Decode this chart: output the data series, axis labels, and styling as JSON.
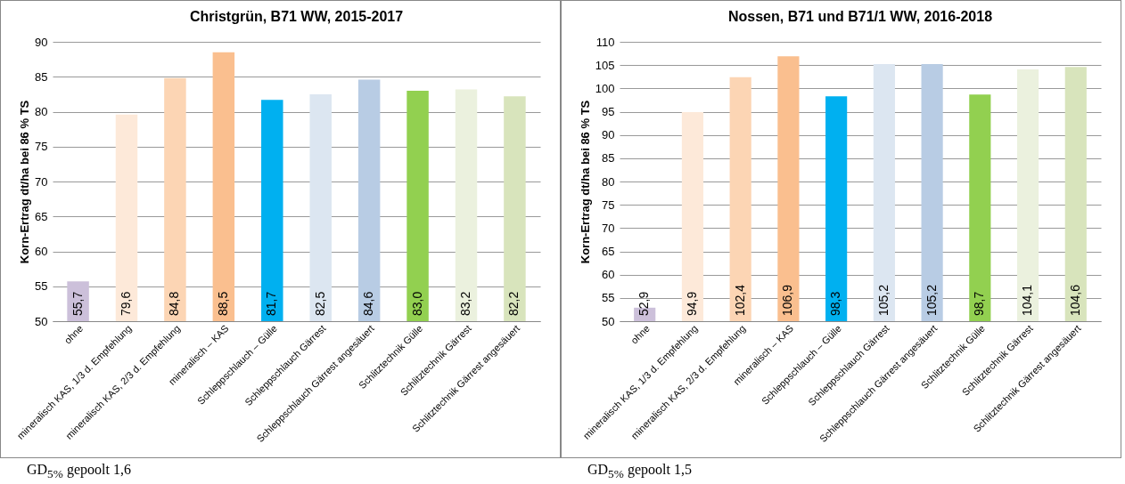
{
  "chart_data": [
    {
      "type": "bar",
      "title": "Christgrün, B71 WW, 2015-2017",
      "ylabel": "Korn-Ertrag  dt/ha bei 86 % TS",
      "categories": [
        "ohne",
        "mineralisch KAS, 1/3 d. Empfehlung",
        "mineralisch KAS, 2/3 d. Empfehlung",
        "mineralisch – KAS",
        "Schleppschlauch – Gülle",
        "Schleppschlauch  Gärrest",
        "Schleppschlauch  Gärrest angesäuert",
        "Schlitztechnik  Gülle",
        "Schlitztechnik  Gärrest",
        "Schlitztechnik  Gärrest angesäuert"
      ],
      "values": [
        55.7,
        79.6,
        84.8,
        88.5,
        81.7,
        82.5,
        84.6,
        83.0,
        83.2,
        82.2
      ],
      "value_labels": [
        "55,7",
        "79,6",
        "84,8",
        "88,5",
        "81,7",
        "82,5",
        "84,6",
        "83,0",
        "83,2",
        "82,2"
      ],
      "colors": [
        "#ccc0da",
        "#fde9d9",
        "#fcd5b4",
        "#fabf8f",
        "#00b0f0",
        "#dce6f1",
        "#b8cce4",
        "#92d050",
        "#ebf1de",
        "#d8e4bc"
      ],
      "ylim": [
        50,
        90
      ],
      "yticks": [
        50,
        55,
        60,
        65,
        70,
        75,
        80,
        85,
        90
      ],
      "grid": "y",
      "annotations": [
        "GD$_{5%}$ gepoolt 1,6"
      ]
    },
    {
      "type": "bar",
      "title": "Nossen, B71 und B71/1 WW, 2016-2018",
      "ylabel": "Korn-Ertrag  dt/ha bei 86 % TS",
      "categories": [
        "ohne",
        "mineralisch KAS, 1/3 d. Empfehlung",
        "mineralisch KAS, 2/3 d. Empfehlung",
        "mineralisch – KAS",
        "Schleppschlauch – Gülle",
        "Schleppschlauch  Gärrest",
        "Schleppschlauch  Gärrest angesäuert",
        "Schlitztechnik  Gülle",
        "Schlitztechnik  Gärrest",
        "Schlitztechnik  Gärrest angesäuert"
      ],
      "values": [
        52.9,
        94.9,
        102.4,
        106.9,
        98.3,
        105.2,
        105.2,
        98.7,
        104.1,
        104.6
      ],
      "value_labels": [
        "52,9",
        "94,9",
        "102,4",
        "106,9",
        "98,3",
        "105,2",
        "105,2",
        "98,7",
        "104,1",
        "104,6"
      ],
      "colors": [
        "#ccc0da",
        "#fde9d9",
        "#fcd5b4",
        "#fabf8f",
        "#00b0f0",
        "#dce6f1",
        "#b8cce4",
        "#92d050",
        "#ebf1de",
        "#d8e4bc"
      ],
      "ylim": [
        50,
        110
      ],
      "yticks": [
        50,
        55,
        60,
        65,
        70,
        75,
        80,
        85,
        90,
        95,
        100,
        105,
        110
      ],
      "grid": "y",
      "annotations": [
        "GD$_{5%}$ gepoolt 1,5"
      ]
    }
  ]
}
